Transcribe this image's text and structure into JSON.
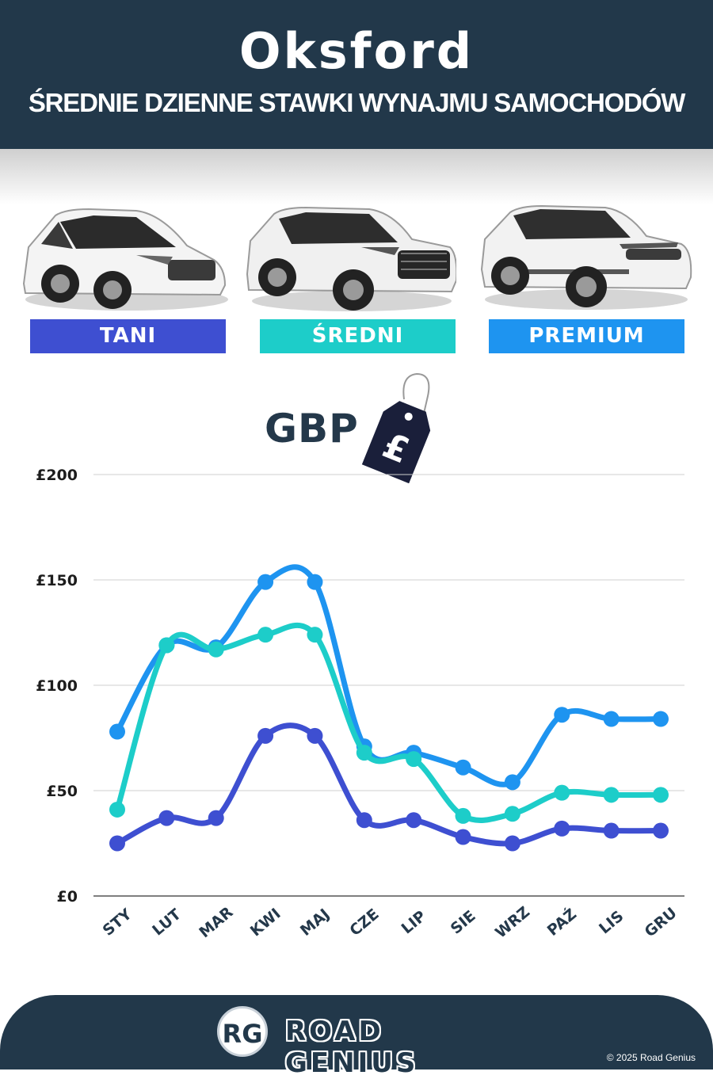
{
  "header": {
    "title": "Oksford",
    "subtitle": "ŚREDNIE DZIENNE STAWKI WYNAJMU SAMOCHODÓW"
  },
  "categories": [
    {
      "label": "TANI",
      "color": "#3e4fd1"
    },
    {
      "label": "ŚREDNI",
      "color": "#1dcdc9"
    },
    {
      "label": "PREMIUM",
      "color": "#1e94f0"
    }
  ],
  "currency": {
    "label": "GBP",
    "symbol": "£",
    "icon": "price-tag-icon"
  },
  "chart_data": {
    "type": "line",
    "categories": [
      "STY",
      "LUT",
      "MAR",
      "KWI",
      "MAJ",
      "CZE",
      "LIP",
      "SIE",
      "WRZ",
      "PAŹ",
      "LIS",
      "GRU"
    ],
    "y_ticks": [
      "£0",
      "£50",
      "£100",
      "£150",
      "£200"
    ],
    "ylim": [
      0,
      200
    ],
    "grid": true,
    "series": [
      {
        "name": "PREMIUM",
        "color": "#1e94f0",
        "values": [
          78,
          119,
          118,
          149,
          149,
          71,
          68,
          61,
          54,
          86,
          84,
          84
        ]
      },
      {
        "name": "ŚREDNI",
        "color": "#1dcdc9",
        "values": [
          41,
          119,
          117,
          124,
          124,
          68,
          65,
          38,
          39,
          49,
          48,
          48
        ]
      },
      {
        "name": "TANI",
        "color": "#3e4fd1",
        "values": [
          25,
          37,
          37,
          76,
          76,
          36,
          36,
          28,
          25,
          32,
          31,
          31
        ]
      }
    ]
  },
  "footer": {
    "logo_initials": "RG",
    "brand": "ROAD GENIUS",
    "copyright": "© 2025 Road Genius"
  }
}
